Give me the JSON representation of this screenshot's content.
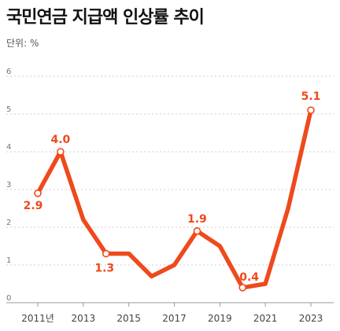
{
  "chart_data": {
    "type": "line",
    "title": "국민연금 지급액 인상률 추이",
    "unit_label": "단위: %",
    "x": [
      2011,
      2012,
      2013,
      2014,
      2015,
      2016,
      2017,
      2018,
      2019,
      2020,
      2021,
      2022,
      2023
    ],
    "values": [
      2.9,
      4.0,
      2.2,
      1.3,
      1.3,
      0.7,
      1.0,
      1.9,
      1.5,
      0.4,
      0.5,
      2.5,
      5.1
    ],
    "xticks": [
      {
        "x": 2011,
        "label": "2011년"
      },
      {
        "x": 2013,
        "label": "2013"
      },
      {
        "x": 2015,
        "label": "2015"
      },
      {
        "x": 2017,
        "label": "2017"
      },
      {
        "x": 2019,
        "label": "2019"
      },
      {
        "x": 2021,
        "label": "2021"
      },
      {
        "x": 2023,
        "label": "2023"
      }
    ],
    "yticks": [
      "0",
      "1",
      "2",
      "3",
      "4",
      "5",
      "6"
    ],
    "ylim": [
      0,
      6
    ],
    "xlim": [
      2011,
      2023
    ],
    "data_labels": [
      {
        "x": 2011,
        "y": 2.9,
        "text": "2.9"
      },
      {
        "x": 2012,
        "y": 4.0,
        "text": "4.0"
      },
      {
        "x": 2014,
        "y": 1.3,
        "text": "1.3"
      },
      {
        "x": 2018,
        "y": 1.9,
        "text": "1.9"
      },
      {
        "x": 2020,
        "y": 0.4,
        "text": "0.4"
      },
      {
        "x": 2023,
        "y": 5.1,
        "text": "5.1"
      }
    ],
    "grid": true,
    "line_color": "#ee4a1c"
  }
}
